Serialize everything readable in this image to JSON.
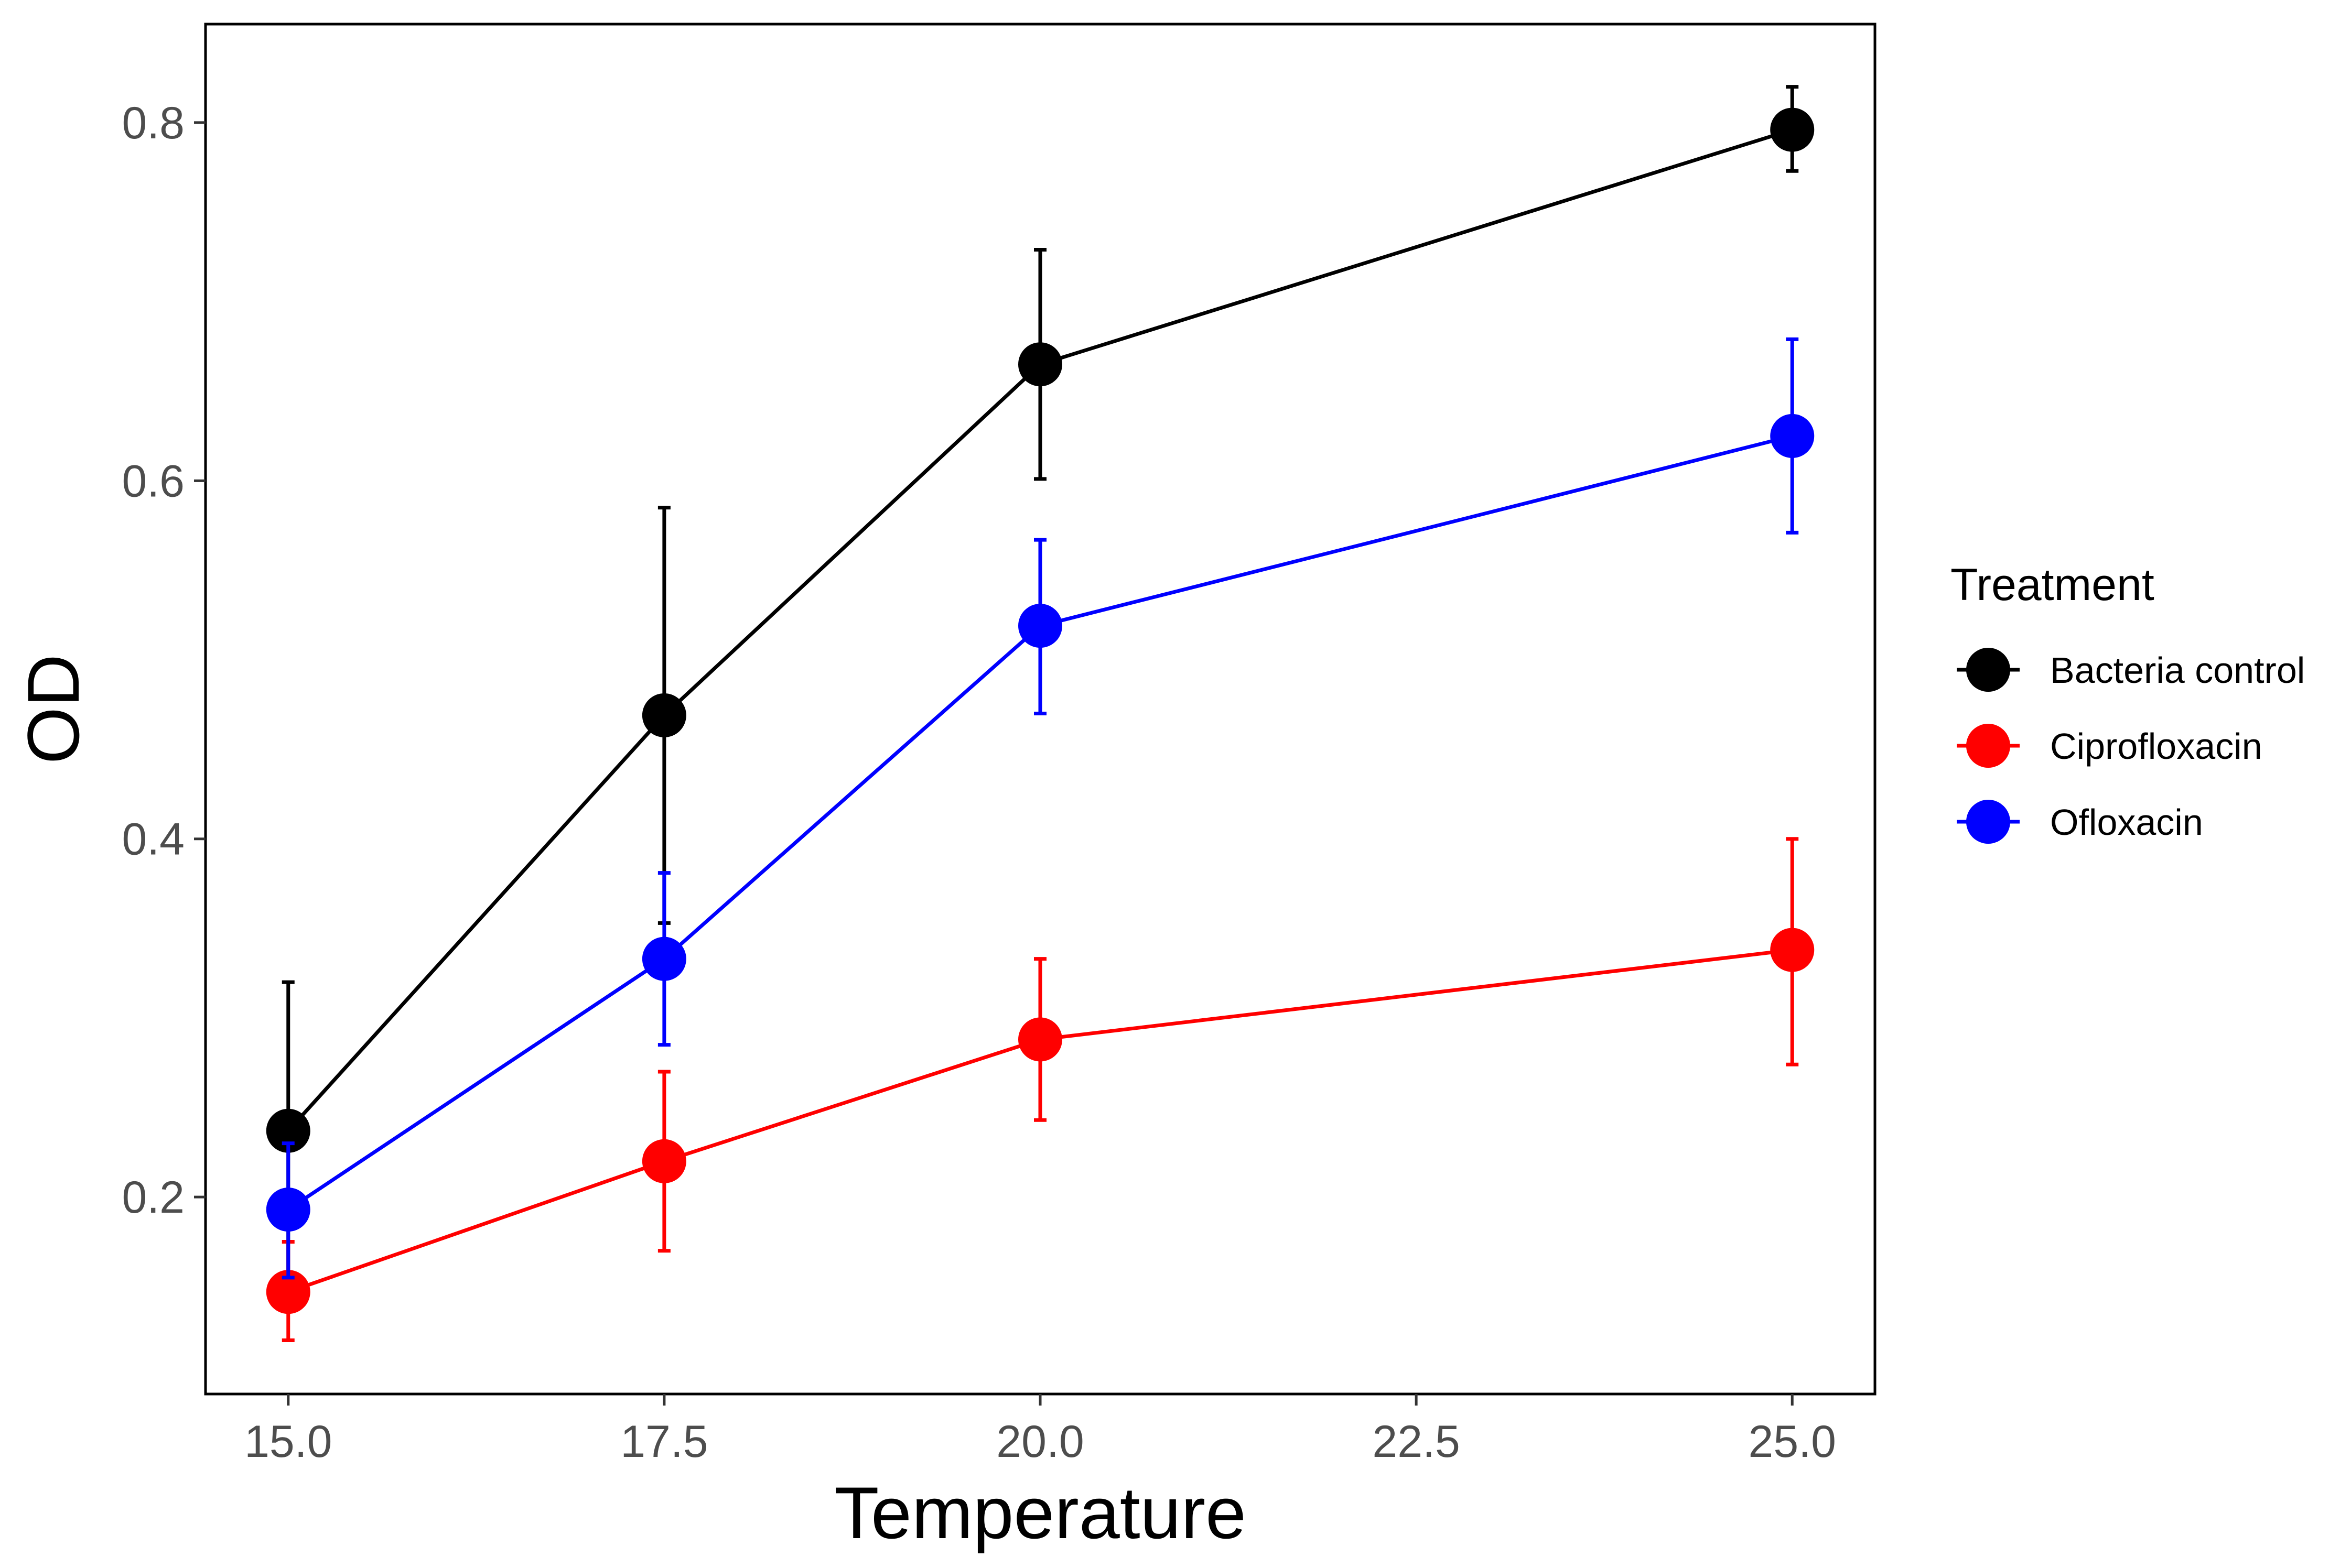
{
  "chart_data": {
    "type": "line",
    "xlabel": "Temperature",
    "ylabel": "OD",
    "xlim": [
      14.45,
      25.55
    ],
    "ylim": [
      0.09,
      0.855
    ],
    "x_ticks": [
      15,
      17.5,
      20,
      22.5,
      25
    ],
    "x_tick_labels": [
      "15.0",
      "17.5",
      "20.0",
      "22.5",
      "25.0"
    ],
    "y_ticks": [
      0.2,
      0.4,
      0.6,
      0.8
    ],
    "y_tick_labels": [
      "0.2",
      "0.4",
      "0.6",
      "0.8"
    ],
    "grid": false,
    "legend": {
      "title": "Treatment",
      "position": "right"
    },
    "series": [
      {
        "name": "Bacteria control",
        "color": "#000000",
        "x": [
          15,
          17.5,
          20,
          25
        ],
        "y": [
          0.237,
          0.469,
          0.665,
          0.796
        ],
        "err_low": [
          0.155,
          0.353,
          0.601,
          0.773
        ],
        "err_high": [
          0.32,
          0.585,
          0.729,
          0.82
        ]
      },
      {
        "name": "Ciprofloxacin",
        "color": "#ff0000",
        "x": [
          15,
          17.5,
          20,
          25
        ],
        "y": [
          0.147,
          0.22,
          0.288,
          0.338
        ],
        "err_low": [
          0.12,
          0.17,
          0.243,
          0.274
        ],
        "err_high": [
          0.175,
          0.27,
          0.333,
          0.4
        ]
      },
      {
        "name": "Ofloxacin",
        "color": "#0000ff",
        "x": [
          15,
          17.5,
          20,
          25
        ],
        "y": [
          0.193,
          0.333,
          0.519,
          0.625
        ],
        "err_low": [
          0.155,
          0.285,
          0.47,
          0.571
        ],
        "err_high": [
          0.23,
          0.381,
          0.567,
          0.679
        ]
      }
    ]
  }
}
